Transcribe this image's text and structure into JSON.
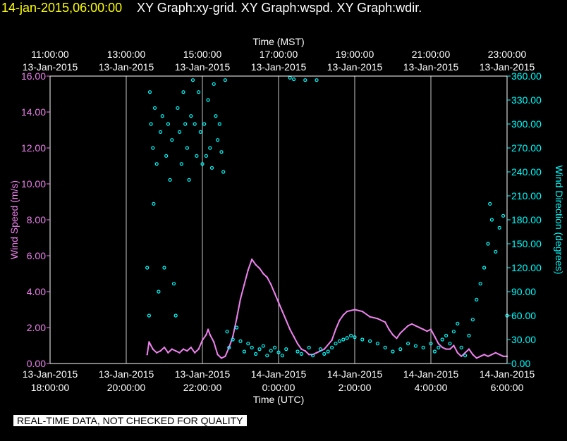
{
  "header": {
    "timestamp": "14-jan-2015,06:00:00",
    "title": "XY Graph:xy-grid.  XY Graph:wspd.  XY Graph:wdir."
  },
  "notice": "REAL-TIME DATA, NOT CHECKED FOR QUALITY",
  "colors": {
    "background": "#000000",
    "axis": "#ffffff",
    "grid": "#c8c8c8",
    "wind_speed": "#ee82ee",
    "wind_direction": "#00ffff",
    "timestamp": "#ffff00"
  },
  "chart_data": {
    "type": "scatter",
    "grid": true,
    "x_range_utc_hours": [
      18,
      30
    ],
    "top_axis": {
      "label": "Time (MST)",
      "ticks": [
        {
          "time": "11:00:00",
          "date": "13-Jan-2015",
          "utc_hour": 18
        },
        {
          "time": "13:00:00",
          "date": "13-Jan-2015",
          "utc_hour": 20
        },
        {
          "time": "15:00:00",
          "date": "13-Jan-2015",
          "utc_hour": 22
        },
        {
          "time": "17:00:00",
          "date": "13-Jan-2015",
          "utc_hour": 24
        },
        {
          "time": "19:00:00",
          "date": "13-Jan-2015",
          "utc_hour": 26
        },
        {
          "time": "21:00:00",
          "date": "13-Jan-2015",
          "utc_hour": 28
        },
        {
          "time": "23:00:00",
          "date": "13-Jan-2015",
          "utc_hour": 30
        }
      ]
    },
    "bottom_axis": {
      "label": "Time (UTC)",
      "ticks": [
        {
          "date": "13-Jan-2015",
          "time": "18:00:00",
          "utc_hour": 18
        },
        {
          "date": "13-Jan-2015",
          "time": "20:00:00",
          "utc_hour": 20
        },
        {
          "date": "13-Jan-2015",
          "time": "22:00:00",
          "utc_hour": 22
        },
        {
          "date": "14-Jan-2015",
          "time": "0:00:00",
          "utc_hour": 24
        },
        {
          "date": "14-Jan-2015",
          "time": "2:00:00",
          "utc_hour": 26
        },
        {
          "date": "14-Jan-2015",
          "time": "4:00:00",
          "utc_hour": 28
        },
        {
          "date": "14-Jan-2015",
          "time": "6:00:00",
          "utc_hour": 30
        }
      ]
    },
    "left_axis": {
      "label": "Wind Speed (m/s)",
      "range": [
        0,
        16
      ],
      "ticks": [
        "0.00",
        "2.00",
        "4.00",
        "6.00",
        "8.00",
        "10.00",
        "12.00",
        "14.00",
        "16.00"
      ]
    },
    "right_axis": {
      "label": "Wind Direction (degrees)",
      "range": [
        0,
        360
      ],
      "ticks": [
        "0.00",
        "30.00",
        "60.00",
        "90.00",
        "120.00",
        "150.00",
        "180.00",
        "210.00",
        "240.00",
        "270.00",
        "300.00",
        "330.00",
        "360.00"
      ]
    },
    "series": [
      {
        "name": "wspd",
        "axis": "left",
        "unit": "m/s",
        "style": "line",
        "points": [
          [
            20.55,
            0.5
          ],
          [
            20.6,
            1.2
          ],
          [
            20.7,
            0.8
          ],
          [
            20.8,
            0.6
          ],
          [
            20.9,
            0.7
          ],
          [
            21.0,
            0.9
          ],
          [
            21.1,
            0.6
          ],
          [
            21.2,
            0.8
          ],
          [
            21.3,
            0.7
          ],
          [
            21.4,
            0.6
          ],
          [
            21.5,
            0.8
          ],
          [
            21.6,
            0.7
          ],
          [
            21.7,
            0.9
          ],
          [
            21.8,
            0.6
          ],
          [
            21.9,
            0.8
          ],
          [
            22.0,
            1.3
          ],
          [
            22.1,
            1.6
          ],
          [
            22.15,
            1.9
          ],
          [
            22.2,
            1.6
          ],
          [
            22.3,
            1.2
          ],
          [
            22.4,
            0.5
          ],
          [
            22.5,
            0.3
          ],
          [
            22.6,
            0.4
          ],
          [
            22.7,
            0.9
          ],
          [
            22.8,
            1.5
          ],
          [
            22.9,
            2.5
          ],
          [
            23.0,
            3.6
          ],
          [
            23.1,
            4.4
          ],
          [
            23.2,
            5.2
          ],
          [
            23.3,
            5.8
          ],
          [
            23.4,
            5.5
          ],
          [
            23.5,
            5.3
          ],
          [
            23.6,
            5.0
          ],
          [
            23.7,
            4.8
          ],
          [
            23.8,
            4.4
          ],
          [
            23.9,
            3.9
          ],
          [
            24.0,
            3.4
          ],
          [
            24.1,
            2.9
          ],
          [
            24.2,
            2.4
          ],
          [
            24.3,
            1.9
          ],
          [
            24.4,
            1.5
          ],
          [
            24.5,
            1.1
          ],
          [
            24.6,
            0.8
          ],
          [
            24.7,
            0.7
          ],
          [
            24.8,
            0.5
          ],
          [
            24.9,
            0.5
          ],
          [
            25.0,
            0.6
          ],
          [
            25.2,
            0.8
          ],
          [
            25.4,
            1.3
          ],
          [
            25.5,
            1.9
          ],
          [
            25.6,
            2.4
          ],
          [
            25.7,
            2.7
          ],
          [
            25.8,
            2.9
          ],
          [
            26.0,
            3.0
          ],
          [
            26.2,
            2.9
          ],
          [
            26.4,
            2.6
          ],
          [
            26.6,
            2.5
          ],
          [
            26.8,
            2.3
          ],
          [
            26.9,
            1.9
          ],
          [
            27.0,
            1.6
          ],
          [
            27.1,
            1.4
          ],
          [
            27.2,
            1.7
          ],
          [
            27.3,
            1.9
          ],
          [
            27.4,
            2.1
          ],
          [
            27.5,
            2.2
          ],
          [
            27.6,
            2.1
          ],
          [
            27.7,
            2.0
          ],
          [
            27.8,
            1.9
          ],
          [
            27.9,
            1.8
          ],
          [
            28.0,
            1.9
          ],
          [
            28.1,
            1.5
          ],
          [
            28.2,
            1.1
          ],
          [
            28.3,
            0.9
          ],
          [
            28.4,
            0.8
          ],
          [
            28.5,
            0.8
          ],
          [
            28.6,
            1.0
          ],
          [
            28.7,
            0.6
          ],
          [
            28.8,
            0.4
          ],
          [
            28.9,
            0.6
          ],
          [
            29.0,
            0.8
          ],
          [
            29.1,
            0.5
          ],
          [
            29.2,
            0.3
          ],
          [
            29.3,
            0.4
          ],
          [
            29.4,
            0.5
          ],
          [
            29.5,
            0.4
          ],
          [
            29.6,
            0.5
          ],
          [
            29.7,
            0.6
          ],
          [
            29.8,
            0.5
          ],
          [
            29.9,
            0.4
          ],
          [
            30.0,
            0.4
          ]
        ]
      },
      {
        "name": "wdir",
        "axis": "right",
        "unit": "degrees",
        "style": "markers",
        "points": [
          [
            20.55,
            120
          ],
          [
            20.6,
            60
          ],
          [
            20.62,
            340
          ],
          [
            20.65,
            300
          ],
          [
            20.7,
            270
          ],
          [
            20.72,
            200
          ],
          [
            20.75,
            320
          ],
          [
            20.8,
            250
          ],
          [
            20.85,
            90
          ],
          [
            20.9,
            290
          ],
          [
            20.95,
            310
          ],
          [
            21.0,
            120
          ],
          [
            21.05,
            260
          ],
          [
            21.1,
            300
          ],
          [
            21.15,
            230
          ],
          [
            21.2,
            280
          ],
          [
            21.25,
            100
          ],
          [
            21.3,
            60
          ],
          [
            21.35,
            320
          ],
          [
            21.4,
            290
          ],
          [
            21.45,
            250
          ],
          [
            21.5,
            340
          ],
          [
            21.55,
            300
          ],
          [
            21.6,
            270
          ],
          [
            21.65,
            230
          ],
          [
            21.7,
            310
          ],
          [
            21.75,
            355
          ],
          [
            21.8,
            300
          ],
          [
            21.85,
            260
          ],
          [
            21.9,
            340
          ],
          [
            21.95,
            290
          ],
          [
            22.0,
            250
          ],
          [
            22.05,
            300
          ],
          [
            22.1,
            260
          ],
          [
            22.15,
            330
          ],
          [
            22.2,
            270
          ],
          [
            22.25,
            245
          ],
          [
            22.3,
            350
          ],
          [
            22.35,
            310
          ],
          [
            22.4,
            280
          ],
          [
            22.45,
            300
          ],
          [
            22.5,
            265
          ],
          [
            22.55,
            240
          ],
          [
            22.6,
            355
          ],
          [
            22.65,
            40
          ],
          [
            22.7,
            20
          ],
          [
            22.8,
            30
          ],
          [
            22.9,
            45
          ],
          [
            23.0,
            28
          ],
          [
            23.1,
            15
          ],
          [
            23.2,
            25
          ],
          [
            23.3,
            20
          ],
          [
            23.4,
            12
          ],
          [
            23.5,
            18
          ],
          [
            23.6,
            22
          ],
          [
            23.7,
            10
          ],
          [
            23.8,
            16
          ],
          [
            23.9,
            20
          ],
          [
            24.0,
            14
          ],
          [
            24.1,
            10
          ],
          [
            24.2,
            18
          ],
          [
            24.3,
            358
          ],
          [
            24.4,
            356
          ],
          [
            24.5,
            15
          ],
          [
            24.6,
            12
          ],
          [
            24.7,
            355
          ],
          [
            24.8,
            20
          ],
          [
            24.9,
            10
          ],
          [
            25.0,
            355
          ],
          [
            25.1,
            18
          ],
          [
            25.2,
            12
          ],
          [
            25.3,
            15
          ],
          [
            25.4,
            20
          ],
          [
            25.5,
            25
          ],
          [
            25.6,
            28
          ],
          [
            25.7,
            30
          ],
          [
            25.8,
            32
          ],
          [
            25.9,
            35
          ],
          [
            26.0,
            33
          ],
          [
            26.2,
            30
          ],
          [
            26.4,
            28
          ],
          [
            26.6,
            25
          ],
          [
            26.8,
            20
          ],
          [
            27.0,
            15
          ],
          [
            27.2,
            18
          ],
          [
            27.4,
            25
          ],
          [
            27.6,
            22
          ],
          [
            27.8,
            20
          ],
          [
            28.0,
            25
          ],
          [
            28.1,
            15
          ],
          [
            28.2,
            20
          ],
          [
            28.3,
            30
          ],
          [
            28.4,
            35
          ],
          [
            28.5,
            25
          ],
          [
            28.6,
            40
          ],
          [
            28.7,
            50
          ],
          [
            28.8,
            20
          ],
          [
            28.9,
            10
          ],
          [
            29.0,
            35
          ],
          [
            29.1,
            55
          ],
          [
            29.2,
            80
          ],
          [
            29.3,
            100
          ],
          [
            29.4,
            120
          ],
          [
            29.5,
            150
          ],
          [
            29.55,
            200
          ],
          [
            29.6,
            180
          ],
          [
            29.7,
            140
          ],
          [
            29.8,
            170
          ],
          [
            29.9,
            185
          ],
          [
            30.0,
            60
          ]
        ]
      }
    ]
  }
}
